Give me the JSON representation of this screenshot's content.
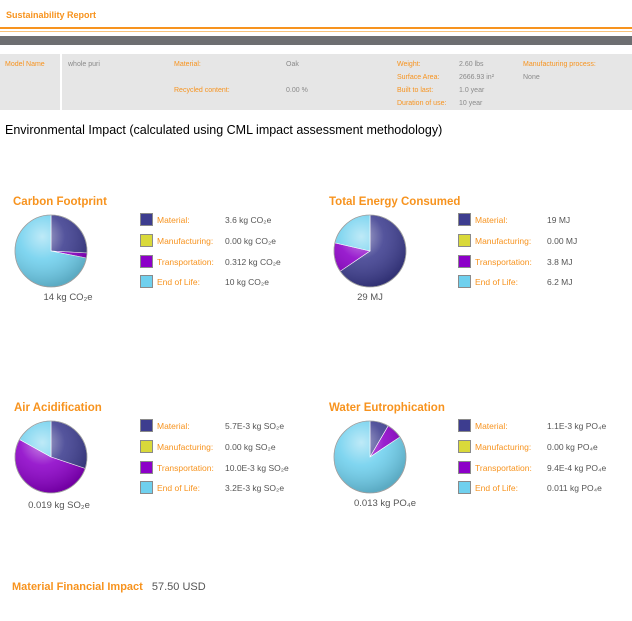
{
  "header": {
    "title": "Sustainability Report"
  },
  "properties": {
    "model_name_label": "Model Name",
    "model_name_value": "whole puri",
    "material_label": "Material:",
    "material_value": "Oak",
    "recycled_label": "Recycled content:",
    "recycled_value": "0.00 %",
    "weight_label": "Weight:",
    "weight_value": "2.60 lbs",
    "surface_label": "Surface Area:",
    "surface_value": "2666.93 in²",
    "built_label": "Built to last:",
    "built_value": "1.0 year",
    "duration_label": "Duration of use:",
    "duration_value": "10 year",
    "process_label": "Manufacturing process:",
    "process_value": "None"
  },
  "env_heading": "Environmental Impact (calculated using CML impact assessment methodology)",
  "colors": {
    "material": "#3d3d8f",
    "manufacturing": "#d9d93a",
    "transportation": "#8c00c8",
    "end_of_life": "#6fd0ee",
    "accent": "#f7931e"
  },
  "legend_labels": [
    "Material:",
    "Manufacturing:",
    "Transportation:",
    "End of Life:"
  ],
  "panels": {
    "carbon": {
      "title": "Carbon Footprint",
      "total": "14 kg CO₂e",
      "values": [
        "3.6 kg CO₂e",
        "0.00 kg CO₂e",
        "0.312 kg CO₂e",
        "10 kg CO₂e"
      ]
    },
    "energy": {
      "title": "Total Energy Consumed",
      "total": "29 MJ",
      "values": [
        "19 MJ",
        "0.00 MJ",
        "3.8 MJ",
        "6.2 MJ"
      ]
    },
    "air": {
      "title": "Air Acidification",
      "total": "0.019 kg SO₂e",
      "values": [
        "5.7E-3 kg SO₂e",
        "0.00 kg SO₂e",
        "10.0E-3 kg SO₂e",
        "3.2E-3 kg SO₂e"
      ]
    },
    "water": {
      "title": "Water Eutrophication",
      "total": "0.013 kg PO₄e",
      "values": [
        "1.1E-3 kg PO₄e",
        "0.00 kg PO₄e",
        "9.4E-4 kg PO₄e",
        "0.011 kg PO₄e"
      ]
    }
  },
  "chart_data": [
    {
      "type": "pie",
      "title": "Carbon Footprint",
      "unit": "kg CO₂e",
      "categories": [
        "Material",
        "Manufacturing",
        "Transportation",
        "End of Life"
      ],
      "values": [
        3.6,
        0.0,
        0.312,
        10
      ]
    },
    {
      "type": "pie",
      "title": "Total Energy Consumed",
      "unit": "MJ",
      "categories": [
        "Material",
        "Manufacturing",
        "Transportation",
        "End of Life"
      ],
      "values": [
        19,
        0.0,
        3.8,
        6.2
      ]
    },
    {
      "type": "pie",
      "title": "Air Acidification",
      "unit": "kg SO₂e",
      "categories": [
        "Material",
        "Manufacturing",
        "Transportation",
        "End of Life"
      ],
      "values": [
        0.0057,
        0.0,
        0.01,
        0.0032
      ]
    },
    {
      "type": "pie",
      "title": "Water Eutrophication",
      "unit": "kg PO₄e",
      "categories": [
        "Material",
        "Manufacturing",
        "Transportation",
        "End of Life"
      ],
      "values": [
        0.0011,
        0.0,
        0.00094,
        0.011
      ]
    }
  ],
  "financial": {
    "label": "Material Financial Impact",
    "value": "57.50 USD"
  }
}
